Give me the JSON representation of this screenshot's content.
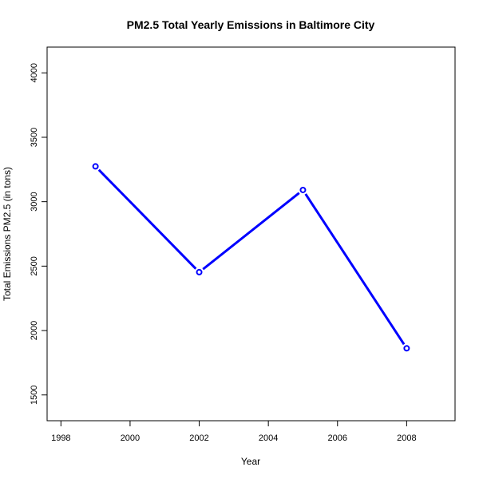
{
  "chart_data": {
    "type": "line",
    "title": "PM2.5 Total Yearly Emissions in Baltimore City",
    "xlabel": "Year",
    "ylabel": "Total Emissions PM2.5 (in tons)",
    "x": [
      1999,
      2002,
      2005,
      2008
    ],
    "series": [
      {
        "values": [
          3274,
          2453,
          3091,
          1862
        ],
        "color": "#0000ff",
        "marker": "open-circle"
      }
    ],
    "xlim": [
      1997.6,
      2009.4
    ],
    "ylim": [
      1300,
      4200
    ],
    "xticks": [
      1998,
      2000,
      2002,
      2004,
      2006,
      2008
    ],
    "yticks": [
      1500,
      2000,
      2500,
      3000,
      3500,
      4000
    ],
    "xtick_labels": [
      "1998",
      "2000",
      "2002",
      "2004",
      "2006",
      "2008"
    ],
    "ytick_labels": [
      "1500",
      "2000",
      "2500",
      "3000",
      "3500",
      "4000"
    ],
    "grid": false,
    "legend": "none"
  }
}
